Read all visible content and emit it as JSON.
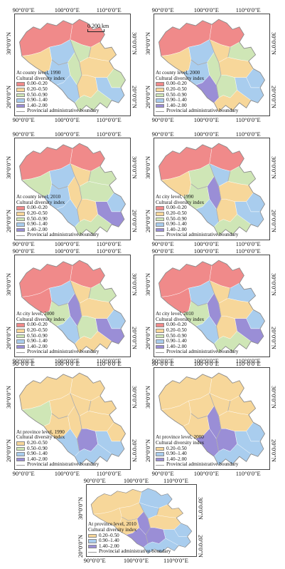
{
  "axis": {
    "lon1": "90°0′0″E",
    "lon2": "100°0′0″E",
    "lon3": "110°0′0″E",
    "lat_top": "30°0′0″N",
    "lat_bottom": "20°0′0″N"
  },
  "scale_label": "0  200 km",
  "legend_title": "Cultural diversity index",
  "boundary_label": "Provincial administrative boundary",
  "colors": {
    "c1": "#f08a8a",
    "c2": "#f7d79a",
    "c3": "#cfe6b6",
    "c4": "#a9cdee",
    "c5": "#9a8ed6",
    "boundary": "#aaaaaa"
  },
  "panels": [
    {
      "level": "At county level, 1990",
      "classes": [
        {
          "label": "0.00–0.20",
          "color": "c1"
        },
        {
          "label": "0.20–0.50",
          "color": "c2"
        },
        {
          "label": "0.50–0.90",
          "color": "c3"
        },
        {
          "label": "0.90–1.40",
          "color": "c4"
        },
        {
          "label": "1.40–2.00",
          "color": "c5"
        }
      ]
    },
    {
      "level": "At county level, 2000",
      "classes": [
        {
          "label": "0.00–0.20",
          "color": "c1"
        },
        {
          "label": "0.20–0.50",
          "color": "c2"
        },
        {
          "label": "0.50–0.90",
          "color": "c3"
        },
        {
          "label": "0.90–1.40",
          "color": "c4"
        },
        {
          "label": "1.40–2.00",
          "color": "c5"
        }
      ]
    },
    {
      "level": "At county level, 2010",
      "classes": [
        {
          "label": "0.00–0.20",
          "color": "c1"
        },
        {
          "label": "0.20–0.50",
          "color": "c2"
        },
        {
          "label": "0.50–0.90",
          "color": "c3"
        },
        {
          "label": "0.90–1.40",
          "color": "c4"
        },
        {
          "label": "1.40–2.00",
          "color": "c5"
        }
      ]
    },
    {
      "level": "At city level, 1990",
      "classes": [
        {
          "label": "0.00–0.20",
          "color": "c1"
        },
        {
          "label": "0.20–0.50",
          "color": "c2"
        },
        {
          "label": "0.50–0.90",
          "color": "c3"
        },
        {
          "label": "0.90–1.40",
          "color": "c4"
        },
        {
          "label": "1.40–2.00",
          "color": "c5"
        }
      ]
    },
    {
      "level": "At city level, 2000",
      "classes": [
        {
          "label": "0.00–0.20",
          "color": "c1"
        },
        {
          "label": "0.20–0.50",
          "color": "c2"
        },
        {
          "label": "0.50–0.90",
          "color": "c3"
        },
        {
          "label": "0.90–1.40",
          "color": "c4"
        },
        {
          "label": "1.40–2.00",
          "color": "c5"
        }
      ]
    },
    {
      "level": "At city level, 2010",
      "classes": [
        {
          "label": "0.00–0.20",
          "color": "c1"
        },
        {
          "label": "0.20–0.50",
          "color": "c2"
        },
        {
          "label": "0.50–0.90",
          "color": "c3"
        },
        {
          "label": "0.90–1.40",
          "color": "c4"
        },
        {
          "label": "1.40–2.00",
          "color": "c5"
        }
      ]
    },
    {
      "level": "At province level, 1990",
      "classes": [
        {
          "label": "0.20–0.50",
          "color": "c2"
        },
        {
          "label": "0.50–0.90",
          "color": "c3"
        },
        {
          "label": "0.90–1.40",
          "color": "c4"
        },
        {
          "label": "1.40–2.00",
          "color": "c5"
        }
      ]
    },
    {
      "level": "At province level, 2000",
      "classes": [
        {
          "label": "0.20–0.50",
          "color": "c2"
        },
        {
          "label": "0.90–1.40",
          "color": "c4"
        },
        {
          "label": "1.40–2.00",
          "color": "c5"
        }
      ]
    },
    {
      "level": "At province level, 2010",
      "classes": [
        {
          "label": "0.20–0.50",
          "color": "c2"
        },
        {
          "label": "0.90–1.40",
          "color": "c4"
        },
        {
          "label": "1.40–2.00",
          "color": "c5"
        }
      ]
    }
  ]
}
